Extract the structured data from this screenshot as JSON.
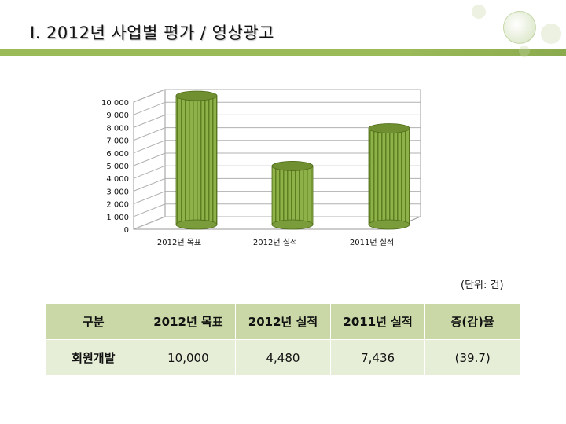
{
  "header": {
    "title": "Ⅰ. 2012년 사업별 평가 / 영상광고"
  },
  "colors": {
    "accent": "#9bbb59",
    "bar_fill": "#8fb14a",
    "bar_stripe": "#5e7f1f",
    "header_cell": "#c9d8a6",
    "body_cell": "#e6eed8"
  },
  "chart_data": {
    "type": "bar",
    "style": "3d-cylinder",
    "categories": [
      "2012년 목표",
      "2012년 실적",
      "2011년 실적"
    ],
    "values": [
      10000,
      4480,
      7436
    ],
    "ylim": [
      0,
      10000
    ],
    "yticks": [
      0,
      1000,
      2000,
      3000,
      4000,
      5000,
      6000,
      7000,
      8000,
      9000,
      10000
    ],
    "ytick_labels": [
      "0",
      "1 000",
      "2 000",
      "3 000",
      "4 000",
      "5 000",
      "6 000",
      "7 000",
      "8 000",
      "9 000",
      "10 000"
    ],
    "grid": true,
    "title": "",
    "xlabel": "",
    "ylabel": ""
  },
  "unit_note": "(단위: 건)",
  "table": {
    "headers": [
      "구분",
      "2012년 목표",
      "2012년 실적",
      "2011년 실적",
      "증(감)율"
    ],
    "rows": [
      [
        "회원개발",
        "10,000",
        "4,480",
        "7,436",
        "(39.7)"
      ]
    ]
  }
}
